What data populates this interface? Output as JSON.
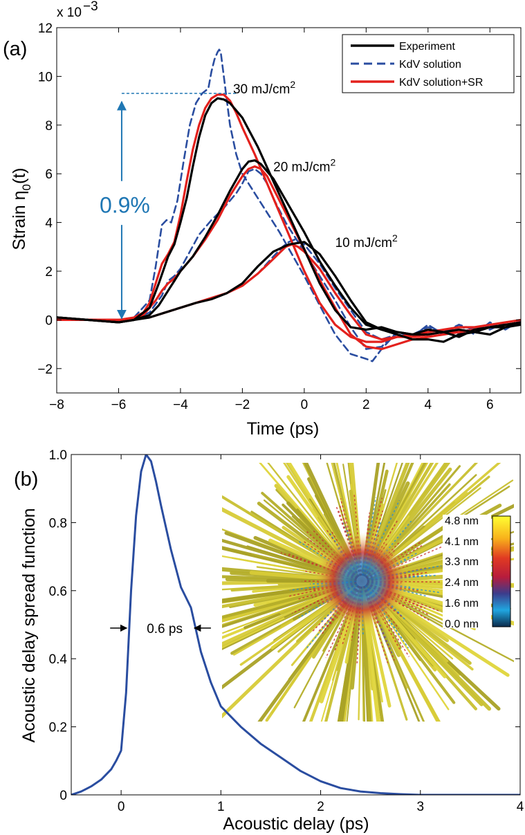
{
  "chart_data": [
    {
      "type": "line",
      "panel_label": "(a)",
      "xlabel": "Time (ps)",
      "ylabel_main": "Strain η",
      "ylabel_sub": "0",
      "ylabel_tail": "(t)",
      "exponent_prefix": "x 10",
      "exponent_power": "−3",
      "xlim": [
        -8,
        7
      ],
      "ylim": [
        -3,
        12
      ],
      "xticks": [
        -8,
        -6,
        -4,
        -2,
        0,
        2,
        4,
        6
      ],
      "xtick_labels": [
        "−8",
        "−6",
        "−4",
        "−2",
        "0",
        "2",
        "4",
        "6"
      ],
      "yticks": [
        -2,
        0,
        2,
        4,
        6,
        8,
        10,
        12
      ],
      "ytick_labels": [
        "−2",
        "0",
        "2",
        "4",
        "6",
        "8",
        "10",
        "12"
      ],
      "legend": [
        {
          "label": "Experiment",
          "color": "#000000",
          "style": "solid"
        },
        {
          "label": "KdV solution",
          "color": "#2a4da0",
          "style": "dashed"
        },
        {
          "label": "KdV solution+SR",
          "color": "#e3211d",
          "style": "solid"
        }
      ],
      "annotations": [
        {
          "text": "30 mJ/cm",
          "sup": "2",
          "x": -2.3,
          "y": 9.3
        },
        {
          "text": "20 mJ/cm",
          "sup": "2",
          "x": -1.0,
          "y": 6.1
        },
        {
          "text": "10 mJ/cm",
          "sup": "2",
          "x": 1.0,
          "y": 3.0
        }
      ],
      "arrow": {
        "label": "0.9%",
        "x": -5.9,
        "y_from": 0,
        "y_to": 9.3,
        "dash_to_x": -2.2,
        "color": "#1f77b4"
      },
      "series": [
        {
          "name": "Experiment 30 mJ/cm2",
          "group": "Experiment",
          "color": "#000000",
          "style": "solid",
          "x": [
            -8,
            -7.5,
            -7,
            -6.5,
            -6,
            -5.5,
            -5,
            -4.7,
            -4.4,
            -4.2,
            -4,
            -3.8,
            -3.6,
            -3.4,
            -3.2,
            -3,
            -2.8,
            -2.6,
            -2.4,
            -2.2,
            -2,
            -1.5,
            -1,
            -0.5,
            0,
            0.5,
            1,
            1.5,
            2,
            2.5,
            3,
            3.5,
            4,
            4.5,
            5,
            5.5,
            6,
            6.5,
            7
          ],
          "y": [
            0.1,
            0.05,
            0,
            -0.05,
            -0.1,
            0,
            0.5,
            1.5,
            2.6,
            3.1,
            4.0,
            5.0,
            6.3,
            7.5,
            8.4,
            8.9,
            9.1,
            9.05,
            8.9,
            8.6,
            8.3,
            7.1,
            5.7,
            4.3,
            2.9,
            1.5,
            0.4,
            -0.3,
            -0.4,
            -0.3,
            -0.5,
            -0.6,
            -0.4,
            -0.5,
            -0.4,
            -0.5,
            -0.3,
            -0.3,
            -0.1
          ]
        },
        {
          "name": "Experiment 20 mJ/cm2",
          "group": "Experiment",
          "color": "#000000",
          "style": "solid",
          "x": [
            -8,
            -7.5,
            -7,
            -6.5,
            -6,
            -5.5,
            -5,
            -4.7,
            -4.4,
            -4.2,
            -4,
            -3.6,
            -3.2,
            -2.8,
            -2.4,
            -2,
            -1.8,
            -1.6,
            -1.4,
            -1.2,
            -1,
            -0.5,
            0,
            0.5,
            1,
            1.5,
            2,
            2.5,
            3,
            3.5,
            4,
            4.5,
            5,
            5.5,
            6,
            6.5,
            7
          ],
          "y": [
            0.1,
            0.05,
            0,
            -0.05,
            -0.1,
            0,
            0.2,
            0.6,
            1.2,
            1.6,
            2.0,
            2.6,
            3.4,
            4.3,
            5.3,
            6.2,
            6.5,
            6.55,
            6.4,
            6.1,
            5.8,
            4.7,
            3.6,
            2.4,
            1.4,
            0.5,
            -0.2,
            -0.4,
            -0.5,
            -0.6,
            -0.6,
            -0.5,
            -0.7,
            -0.4,
            -0.3,
            -0.2,
            -0.1
          ]
        },
        {
          "name": "Experiment 10 mJ/cm2",
          "group": "Experiment",
          "color": "#000000",
          "style": "solid",
          "x": [
            -8,
            -7.5,
            -7,
            -6.5,
            -6,
            -5.5,
            -5,
            -4.5,
            -4,
            -3.5,
            -3,
            -2.5,
            -2,
            -1.5,
            -1,
            -0.5,
            0,
            0.5,
            1,
            1.5,
            2,
            2.5,
            3,
            3.5,
            4,
            4.5,
            5,
            5.5,
            6,
            6.5,
            7
          ],
          "y": [
            0.1,
            0.05,
            0,
            -0.05,
            -0.1,
            0,
            0.1,
            0.3,
            0.5,
            0.7,
            0.85,
            1.1,
            1.5,
            2.2,
            2.8,
            3.1,
            3.2,
            2.7,
            1.8,
            0.8,
            -0.1,
            -0.4,
            -0.6,
            -0.8,
            -0.8,
            -0.9,
            -0.6,
            -0.5,
            -0.6,
            -0.3,
            -0.2
          ]
        },
        {
          "name": "KdV 30 mJ/cm2",
          "group": "KdV solution",
          "color": "#2a4da0",
          "style": "dashed",
          "x": [
            -8,
            -7,
            -6,
            -5.5,
            -5,
            -4.8,
            -4.6,
            -4.45,
            -4.3,
            -4.1,
            -3.9,
            -3.7,
            -3.5,
            -3.3,
            -3.1,
            -3.0,
            -2.9,
            -2.8,
            -2.75,
            -2.7,
            -2.6,
            -2.5,
            -2.4,
            -2.2,
            -2,
            -1.6,
            -1.2,
            -0.8,
            -0.4,
            0,
            0.5,
            1,
            1.5,
            2,
            2.2,
            2.5,
            3,
            3.5,
            4,
            4.5,
            5,
            5.5,
            6,
            6.5,
            7
          ],
          "y": [
            0,
            0,
            0,
            0.1,
            0.8,
            2.2,
            3.9,
            4.1,
            4.0,
            4.9,
            6.5,
            8.0,
            8.9,
            9.3,
            9.5,
            10.2,
            10.7,
            11.0,
            11.1,
            11.0,
            10.0,
            9.0,
            8.0,
            6.8,
            6.0,
            5.2,
            4.4,
            3.6,
            2.7,
            1.8,
            0.6,
            -0.6,
            -1.4,
            -1.6,
            -1.7,
            -1.2,
            -0.5,
            -0.7,
            -0.2,
            -0.6,
            -0.2,
            -0.6,
            -0.1,
            -0.4,
            0
          ]
        },
        {
          "name": "KdV 20 mJ/cm2",
          "group": "KdV solution",
          "color": "#2a4da0",
          "style": "dashed",
          "x": [
            -8,
            -7,
            -6,
            -5.5,
            -5,
            -4.6,
            -4.4,
            -4.2,
            -4,
            -3.7,
            -3.4,
            -3.0,
            -2.6,
            -2.2,
            -2.0,
            -1.8,
            -1.6,
            -1.4,
            -1.2,
            -1,
            -0.6,
            -0.2,
            0.2,
            0.6,
            1,
            1.5,
            2,
            2.5,
            3,
            3.5,
            4,
            4.5,
            5,
            5.5,
            6,
            6.5,
            7
          ],
          "y": [
            0,
            0,
            0,
            0.05,
            0.3,
            1.0,
            1.6,
            1.8,
            2.1,
            2.8,
            3.5,
            4.1,
            4.6,
            5.2,
            5.6,
            6.1,
            6.2,
            6.0,
            5.6,
            5.0,
            4.0,
            3.2,
            2.4,
            1.6,
            0.8,
            -0.3,
            -1.2,
            -1.1,
            -0.5,
            -0.6,
            -0.3,
            -0.5,
            -0.2,
            -0.4,
            -0.2,
            -0.3,
            0
          ]
        },
        {
          "name": "KdV 10 mJ/cm2",
          "group": "KdV solution",
          "color": "#2a4da0",
          "style": "dashed",
          "x": [
            -8,
            -7,
            -6,
            -5.5,
            -5,
            -4.5,
            -4,
            -3.5,
            -3,
            -2.5,
            -2,
            -1.5,
            -1,
            -0.7,
            -0.5,
            -0.3,
            0,
            0.5,
            1,
            1.5,
            2,
            2.5,
            3,
            3.5,
            4,
            4.5,
            5,
            5.5,
            6,
            6.5,
            7
          ],
          "y": [
            0,
            0,
            0,
            0.02,
            0.1,
            0.3,
            0.5,
            0.7,
            0.9,
            1.1,
            1.4,
            1.9,
            2.6,
            3.0,
            3.2,
            3.3,
            3.1,
            2.3,
            1.3,
            0.4,
            -0.5,
            -0.8,
            -0.6,
            -0.7,
            -0.5,
            -0.4,
            -0.6,
            -0.3,
            -0.4,
            -0.1,
            0
          ]
        },
        {
          "name": "KdV+SR 30 mJ/cm2",
          "group": "KdV solution+SR",
          "color": "#e3211d",
          "style": "solid",
          "x": [
            -8,
            -7,
            -6,
            -5.5,
            -5.2,
            -5,
            -4.8,
            -4.6,
            -4.4,
            -4.2,
            -4,
            -3.8,
            -3.6,
            -3.4,
            -3.2,
            -3,
            -2.8,
            -2.6,
            -2.4,
            -2.2,
            -2,
            -1.6,
            -1.2,
            -0.8,
            -0.4,
            0,
            0.5,
            1,
            1.5,
            2,
            2.5,
            3,
            3.5,
            4,
            4.5,
            5,
            5.5,
            6,
            6.5,
            7
          ],
          "y": [
            0,
            0,
            0,
            0.1,
            0.3,
            0.7,
            1.5,
            2.3,
            2.7,
            3.2,
            4.3,
            5.7,
            7.0,
            8.0,
            8.7,
            9.1,
            9.25,
            9.25,
            9.0,
            8.5,
            7.9,
            6.8,
            5.6,
            4.4,
            3.2,
            2.0,
            0.7,
            -0.2,
            -0.7,
            -0.9,
            -0.9,
            -0.7,
            -0.7,
            -0.6,
            -0.5,
            -0.5,
            -0.4,
            -0.3,
            -0.2,
            -0.1
          ]
        },
        {
          "name": "KdV+SR 20 mJ/cm2",
          "group": "KdV solution+SR",
          "color": "#e3211d",
          "style": "solid",
          "x": [
            -8,
            -7,
            -6,
            -5.5,
            -5.2,
            -5,
            -4.8,
            -4.6,
            -4.4,
            -4.2,
            -4,
            -3.6,
            -3.2,
            -2.8,
            -2.4,
            -2,
            -1.8,
            -1.6,
            -1.4,
            -1.2,
            -1,
            -0.6,
            -0.2,
            0.2,
            0.6,
            1,
            1.5,
            2,
            2.5,
            3,
            3.5,
            4,
            4.5,
            5,
            5.5,
            6,
            6.5,
            7
          ],
          "y": [
            0,
            0,
            0,
            0.05,
            0.2,
            0.5,
            0.8,
            1.2,
            1.5,
            1.7,
            2.0,
            2.6,
            3.3,
            4.1,
            5.1,
            5.9,
            6.2,
            6.3,
            6.2,
            5.9,
            5.4,
            4.4,
            3.4,
            2.4,
            1.4,
            0.5,
            -0.6,
            -1.1,
            -1.2,
            -1.0,
            -0.8,
            -0.7,
            -0.6,
            -0.5,
            -0.4,
            -0.3,
            -0.2,
            -0.1
          ]
        },
        {
          "name": "KdV+SR 10 mJ/cm2",
          "group": "KdV solution+SR",
          "color": "#e3211d",
          "style": "solid",
          "x": [
            -8,
            -7,
            -6,
            -5.5,
            -5,
            -4.5,
            -4,
            -3.5,
            -3,
            -2.5,
            -2,
            -1.5,
            -1,
            -0.6,
            -0.4,
            -0.2,
            0,
            0.5,
            1,
            1.5,
            2,
            2.5,
            3,
            3.5,
            4,
            4.5,
            5,
            5.5,
            6,
            6.5,
            7
          ],
          "y": [
            0,
            0,
            0,
            0.02,
            0.1,
            0.3,
            0.5,
            0.7,
            0.9,
            1.1,
            1.4,
            1.9,
            2.5,
            3.0,
            3.1,
            3.0,
            2.8,
            2.1,
            1.1,
            0.2,
            -0.6,
            -0.8,
            -0.7,
            -0.6,
            -0.5,
            -0.4,
            -0.3,
            -0.3,
            -0.2,
            -0.1,
            0
          ]
        }
      ]
    },
    {
      "type": "line",
      "panel_label": "(b)",
      "xlabel": "Acoustic delay (ps)",
      "ylabel": "Acoustic delay spread function",
      "xlim": [
        -0.5,
        4
      ],
      "ylim": [
        0,
        1
      ],
      "xticks": [
        0,
        1,
        2,
        3,
        4
      ],
      "xtick_labels": [
        "0",
        "1",
        "2",
        "3",
        "4"
      ],
      "yticks": [
        0,
        0.2,
        0.4,
        0.6,
        0.8,
        1.0
      ],
      "ytick_labels": [
        "0",
        "0.2",
        "0.4",
        "0.6",
        "0.8",
        "1.0"
      ],
      "fwhm_label": "0.6 ps",
      "fwhm_range": [
        0.07,
        0.72
      ],
      "fwhm_y": 0.49,
      "series": [
        {
          "name": "Acoustic delay spread function",
          "color": "#2a4da0",
          "x": [
            -0.5,
            -0.4,
            -0.3,
            -0.2,
            -0.1,
            -0.05,
            0,
            0.05,
            0.1,
            0.15,
            0.2,
            0.25,
            0.3,
            0.35,
            0.4,
            0.5,
            0.6,
            0.7,
            0.8,
            0.9,
            1.0,
            1.2,
            1.4,
            1.6,
            1.8,
            2.0,
            2.2,
            2.4,
            2.6,
            2.8,
            3.0,
            3.5,
            4.0
          ],
          "y": [
            0,
            0.01,
            0.025,
            0.045,
            0.075,
            0.1,
            0.13,
            0.3,
            0.6,
            0.82,
            0.95,
            1.0,
            0.98,
            0.92,
            0.85,
            0.72,
            0.61,
            0.55,
            0.42,
            0.33,
            0.26,
            0.2,
            0.15,
            0.11,
            0.07,
            0.04,
            0.02,
            0.01,
            0.005,
            0.002,
            0,
            0,
            0
          ]
        }
      ]
    }
  ],
  "inset": {
    "description_icon": "nanostructure-image",
    "colorbar_labels": [
      "4.8 nm",
      "4.1 nm",
      "3.3 nm",
      "2.4 nm",
      "1.6 nm",
      "0.0 nm"
    ],
    "colormap": [
      "#ffff33",
      "#f8b21b",
      "#e03a22",
      "#b81c3c",
      "#3c3c8c",
      "#20a6e0",
      "#0b2a4a"
    ]
  }
}
